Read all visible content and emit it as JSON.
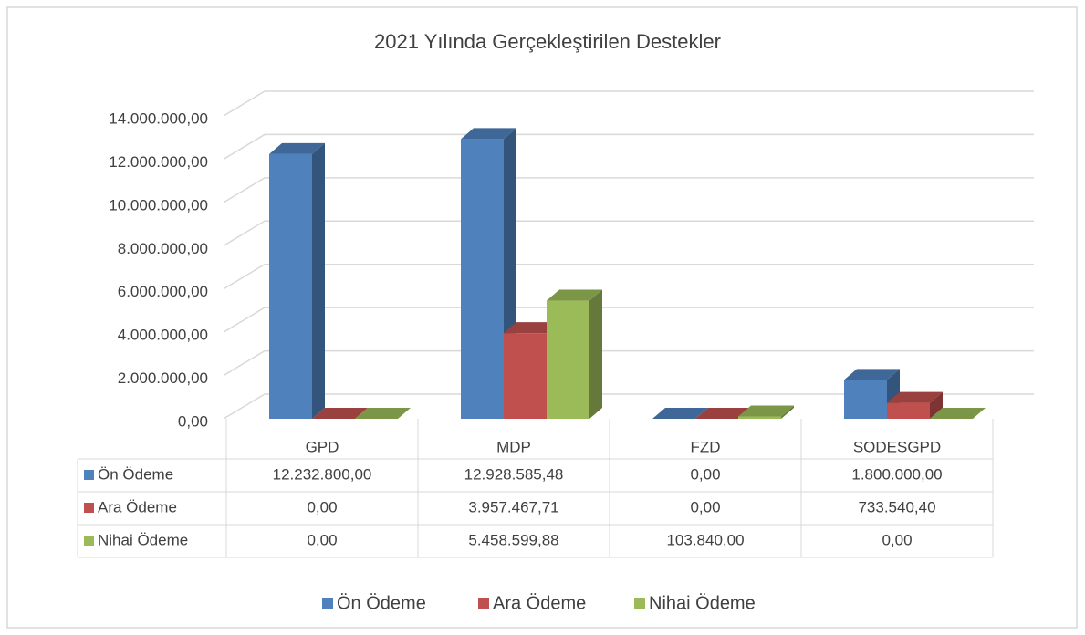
{
  "chart_data": {
    "type": "bar3d",
    "title": "2021 Yılında Gerçekleştirilen Destekler",
    "categories": [
      "GPD",
      "MDP",
      "FZD",
      "SODESGPD"
    ],
    "series": [
      {
        "name": "Ön Ödeme",
        "color": "#4f81bd",
        "values": [
          12232800,
          12928585.48,
          0,
          1800000
        ],
        "value_labels": [
          "12.232.800,00",
          "12.928.585,48",
          "0,00",
          "1.800.000,00"
        ]
      },
      {
        "name": "Ara Ödeme",
        "color": "#c0504d",
        "values": [
          0,
          3957467.71,
          0,
          733540.4
        ],
        "value_labels": [
          "0,00",
          "3.957.467,71",
          "0,00",
          "733.540,40"
        ]
      },
      {
        "name": "Nihai Ödeme",
        "color": "#9bbb59",
        "values": [
          0,
          5458599.88,
          103840,
          0
        ],
        "value_labels": [
          "0,00",
          "5.458.599,88",
          "103.840,00",
          "0,00"
        ]
      }
    ],
    "ylim": [
      0,
      14000000
    ],
    "yticks": [
      {
        "value": 0,
        "label": "0,00"
      },
      {
        "value": 2000000,
        "label": "2.000.000,00"
      },
      {
        "value": 4000000,
        "label": "4.000.000,00"
      },
      {
        "value": 6000000,
        "label": "6.000.000,00"
      },
      {
        "value": 8000000,
        "label": "8.000.000,00"
      },
      {
        "value": 10000000,
        "label": "10.000.000,00"
      },
      {
        "value": 12000000,
        "label": "12.000.000,00"
      },
      {
        "value": 14000000,
        "label": "14.000.000,00"
      }
    ],
    "grid": true,
    "legend": "bottom",
    "data_table": true
  }
}
